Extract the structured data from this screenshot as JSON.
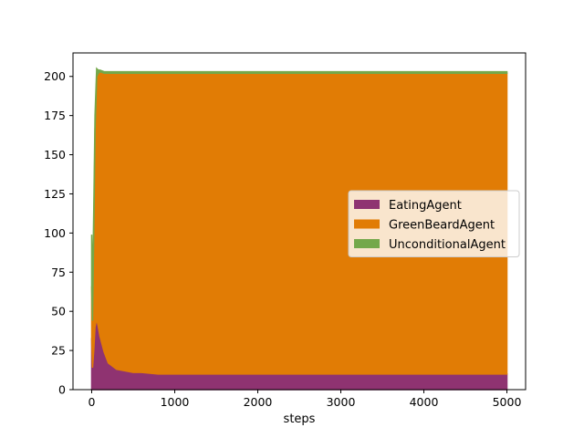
{
  "chart_data": {
    "type": "area",
    "stacked": true,
    "title": "",
    "xlabel": "steps",
    "ylabel": "",
    "xlim": [
      -225,
      5225
    ],
    "ylim": [
      0,
      215
    ],
    "x_ticks": [
      0,
      1000,
      2000,
      3000,
      4000,
      5000
    ],
    "y_ticks": [
      0,
      25,
      50,
      75,
      100,
      125,
      150,
      175,
      200
    ],
    "grid": false,
    "legend_position": "center-right",
    "x": [
      0,
      10,
      25,
      40,
      60,
      80,
      100,
      150,
      200,
      300,
      400,
      500,
      600,
      800,
      1000,
      1500,
      2000,
      2500,
      3000,
      3500,
      4000,
      4500,
      5000
    ],
    "series": [
      {
        "name": "EatingAgent",
        "color": "#8f3371",
        "values": [
          33,
          14,
          25,
          40,
          45,
          40,
          34,
          24,
          17,
          13,
          12,
          11,
          11,
          10,
          10,
          10,
          10,
          10,
          10,
          10,
          10,
          10,
          10
        ]
      },
      {
        "name": "GreenBeardAgent",
        "color": "#e17c05",
        "values": [
          33,
          30,
          75,
          125,
          155,
          162,
          169,
          178,
          185,
          189,
          190,
          191,
          191,
          192,
          192,
          192,
          192,
          192,
          192,
          192,
          192,
          192,
          192
        ]
      },
      {
        "name": "UnconditionalAgent",
        "color": "#74a84a",
        "values": [
          33,
          20,
          15,
          10,
          5,
          2,
          1,
          1,
          1,
          1,
          1,
          1,
          1,
          1,
          1,
          1,
          1,
          1,
          1,
          1,
          1,
          1,
          1
        ]
      }
    ]
  }
}
